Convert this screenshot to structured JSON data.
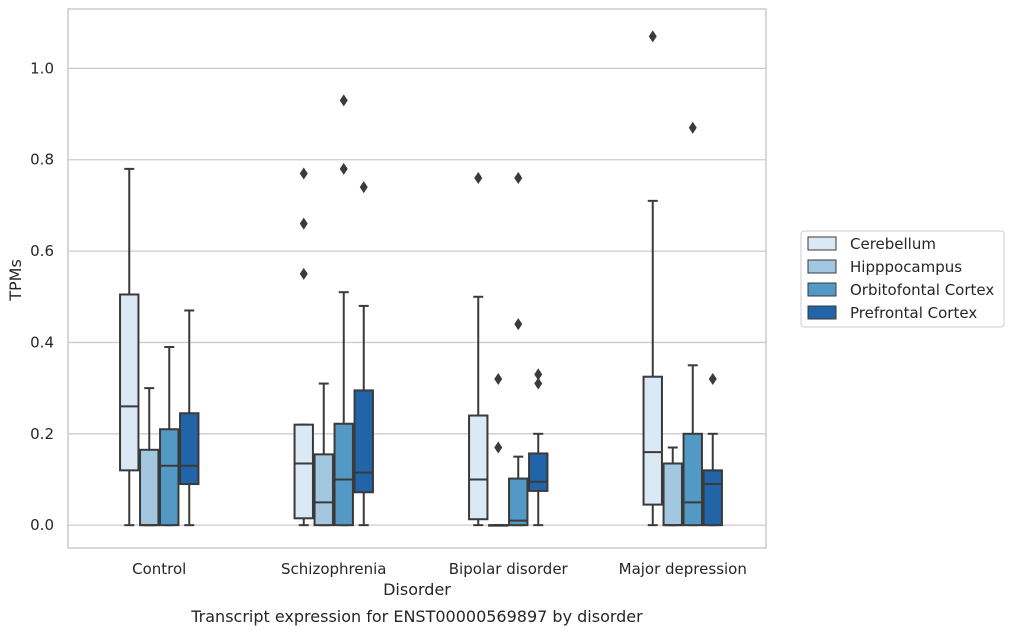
{
  "chart_data": {
    "type": "boxplot",
    "xlabel": "Disorder",
    "ylabel": "TPMs",
    "caption": "Transcript expression for ENST00000569897 by disorder",
    "ylim": [
      -0.05,
      1.13
    ],
    "yticks": [
      "0.0",
      "0.2",
      "0.4",
      "0.6",
      "0.8",
      "1.0"
    ],
    "grid": true,
    "legend_position": "right",
    "categories": [
      "Control",
      "Schizophrenia",
      "Bipolar disorder",
      "Major depression"
    ],
    "series": [
      {
        "name": "Cerebellum",
        "color": "#dbe9f6",
        "boxes": [
          {
            "whislo": 0.0,
            "q1": 0.12,
            "med": 0.26,
            "q3": 0.505,
            "whishi": 0.78,
            "fliers": []
          },
          {
            "whislo": 0.0,
            "q1": 0.015,
            "med": 0.135,
            "q3": 0.22,
            "whishi": 0.22,
            "fliers": [
              0.77,
              0.66,
              0.55
            ]
          },
          {
            "whislo": 0.0,
            "q1": 0.013,
            "med": 0.1,
            "q3": 0.24,
            "whishi": 0.5,
            "fliers": [
              0.76
            ]
          },
          {
            "whislo": 0.0,
            "q1": 0.045,
            "med": 0.16,
            "q3": 0.325,
            "whishi": 0.71,
            "fliers": [
              1.07
            ]
          }
        ]
      },
      {
        "name": "Hipppocampus",
        "color": "#a3c7e0",
        "boxes": [
          {
            "whislo": 0.0,
            "q1": 0.0,
            "med": 0.0,
            "q3": 0.165,
            "whishi": 0.3,
            "fliers": []
          },
          {
            "whislo": 0.0,
            "q1": 0.0,
            "med": 0.05,
            "q3": 0.155,
            "whishi": 0.31,
            "fliers": []
          },
          {
            "whislo": 0.0,
            "q1": 0.0,
            "med": 0.0,
            "q3": 0.0,
            "whishi": 0.0,
            "fliers": [
              0.32,
              0.17
            ]
          },
          {
            "whislo": 0.0,
            "q1": 0.0,
            "med": 0.0,
            "q3": 0.135,
            "whishi": 0.17,
            "fliers": []
          }
        ]
      },
      {
        "name": "Orbitofontal Cortex",
        "color": "#5399c6",
        "boxes": [
          {
            "whislo": 0.0,
            "q1": 0.0,
            "med": 0.13,
            "q3": 0.21,
            "whishi": 0.39,
            "fliers": []
          },
          {
            "whislo": 0.0,
            "q1": 0.0,
            "med": 0.1,
            "q3": 0.222,
            "whishi": 0.51,
            "fliers": [
              0.93,
              0.78
            ]
          },
          {
            "whislo": 0.0,
            "q1": 0.0,
            "med": 0.01,
            "q3": 0.102,
            "whishi": 0.15,
            "fliers": [
              0.76,
              0.44
            ]
          },
          {
            "whislo": 0.0,
            "q1": 0.0,
            "med": 0.05,
            "q3": 0.2,
            "whishi": 0.35,
            "fliers": [
              0.87
            ]
          }
        ]
      },
      {
        "name": "Prefrontal Cortex",
        "color": "#2264a8",
        "boxes": [
          {
            "whislo": 0.0,
            "q1": 0.09,
            "med": 0.13,
            "q3": 0.245,
            "whishi": 0.47,
            "fliers": []
          },
          {
            "whislo": 0.0,
            "q1": 0.072,
            "med": 0.115,
            "q3": 0.295,
            "whishi": 0.48,
            "fliers": [
              0.74
            ]
          },
          {
            "whislo": 0.0,
            "q1": 0.075,
            "med": 0.095,
            "q3": 0.157,
            "whishi": 0.2,
            "fliers": [
              0.33,
              0.31
            ]
          },
          {
            "whislo": 0.0,
            "q1": 0.0,
            "med": 0.09,
            "q3": 0.12,
            "whishi": 0.2,
            "fliers": [
              0.32
            ]
          }
        ]
      }
    ]
  }
}
